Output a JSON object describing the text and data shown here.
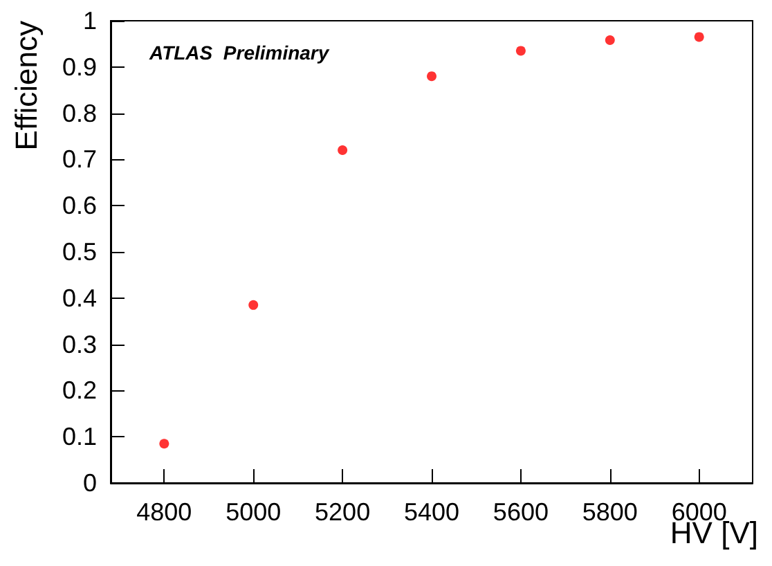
{
  "chart_data": {
    "type": "scatter",
    "xlabel": "HV [V]",
    "ylabel": "Efficiency",
    "annotations": [
      "ATLAS  Preliminary"
    ],
    "x": [
      4800,
      5000,
      5200,
      5400,
      5600,
      5800,
      6000
    ],
    "series": [
      {
        "color": "#ff0000",
        "values": [
          0.085,
          0.385,
          0.72,
          0.88,
          0.935,
          0.958,
          0.965
        ]
      }
    ],
    "xlim": [
      4680,
      6120
    ],
    "xticks": [
      4800,
      5000,
      5200,
      5400,
      5600,
      5800,
      6000
    ],
    "ylim": [
      0,
      1
    ],
    "yticks": [
      0,
      0.1,
      0.2,
      0.3,
      0.4,
      0.5,
      0.6,
      0.7,
      0.8,
      0.9,
      1
    ],
    "grid": false,
    "marker": "circle"
  }
}
